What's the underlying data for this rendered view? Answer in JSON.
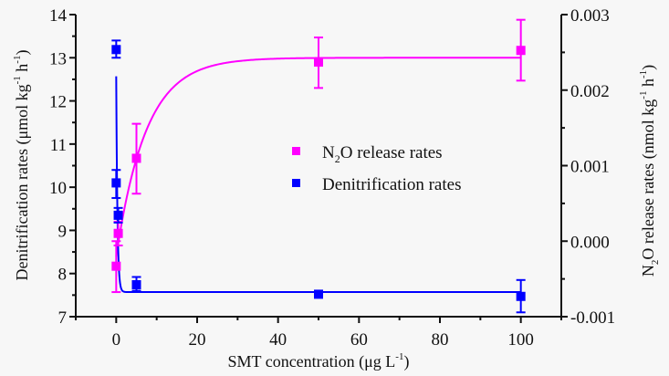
{
  "chart_data": {
    "type": "scatter",
    "title": "",
    "xlabel": "SMT concentration (μg L⁻¹)",
    "ylabel_left": "Denitrification rates (μmol kg⁻¹ h⁻¹)",
    "ylabel_right": "N₂O release rates (nmol kg⁻¹ h⁻¹)",
    "xlim": [
      -10,
      110
    ],
    "ylim_left": [
      7,
      14
    ],
    "ylim_right": [
      -0.001,
      0.003
    ],
    "x_ticks": [
      0,
      20,
      40,
      60,
      80,
      100
    ],
    "x_tick_labels": [
      "0",
      "20",
      "40",
      "60",
      "80",
      "100"
    ],
    "y_left_ticks": [
      7,
      8,
      9,
      10,
      11,
      12,
      13,
      14
    ],
    "y_left_tick_labels": [
      "7",
      "8",
      "9",
      "10",
      "11",
      "12",
      "13",
      "14"
    ],
    "y_right_ticks": [
      -0.001,
      0.0,
      0.001,
      0.002,
      0.003
    ],
    "y_right_tick_labels": [
      "-0.001",
      "0.000",
      "0.001",
      "0.002",
      "0.003"
    ],
    "grid": false,
    "legend_position": "center-right",
    "series": [
      {
        "name": "N₂O release rates",
        "axis": "left",
        "color": "#ff00ff",
        "marker": "square",
        "points": [
          {
            "x": 0,
            "y": 8.17,
            "err_low": 7.57,
            "err_high": 8.75
          },
          {
            "x": 0.5,
            "y": 8.93,
            "err_low": 8.65,
            "err_high": 9.2
          },
          {
            "x": 5,
            "y": 10.67,
            "err_low": 9.85,
            "err_high": 11.47
          },
          {
            "x": 50,
            "y": 12.9,
            "err_low": 12.3,
            "err_high": 13.47
          },
          {
            "x": 100,
            "y": 13.17,
            "err_low": 12.47,
            "err_high": 13.88
          }
        ],
        "fit": {
          "kind": "exponential-rise",
          "plateau": 13.0,
          "amplitude": 4.6,
          "tau": 7.4
        }
      },
      {
        "name": "Denitrification rates",
        "axis": "left",
        "color": "#0000ff",
        "marker": "square",
        "points": [
          {
            "x": 0,
            "y": 13.19,
            "err_low": 13.0,
            "err_high": 13.4
          },
          {
            "x": 0,
            "y": 10.1,
            "err_low": 9.75,
            "err_high": 10.4
          },
          {
            "x": 0.5,
            "y": 9.35,
            "err_low": 9.18,
            "err_high": 9.52
          },
          {
            "x": 5,
            "y": 7.74,
            "err_low": 7.6,
            "err_high": 7.92
          },
          {
            "x": 50,
            "y": 7.52,
            "err_low": 7.45,
            "err_high": 7.58
          },
          {
            "x": 100,
            "y": 7.47,
            "err_low": 7.1,
            "err_high": 7.85
          }
        ],
        "fit": {
          "kind": "exponential-decay",
          "baseline": 7.57,
          "amplitude": 5.0,
          "tau": 0.3
        }
      }
    ]
  },
  "legend": {
    "items": [
      {
        "label_main": "N",
        "label_sub": "2",
        "label_rest": "O release rates",
        "color": "#ff00ff"
      },
      {
        "label_main": "Denitrification rates",
        "label_sub": "",
        "label_rest": "",
        "color": "#0000ff"
      }
    ]
  },
  "axis_titles": {
    "x": {
      "main": "SMT concentration (μg L",
      "sup": "-1",
      "end": ")"
    },
    "left": {
      "main": "Denitrification rates (μmol kg",
      "sup1": "-1",
      "mid": " h",
      "sup2": "-1",
      "end": ")"
    },
    "right": {
      "n": "N",
      "sub": "2",
      "main": "O release rates (nmol kg",
      "sup1": "-1",
      "mid": " h",
      "sup2": "-1",
      "end": ")"
    }
  }
}
